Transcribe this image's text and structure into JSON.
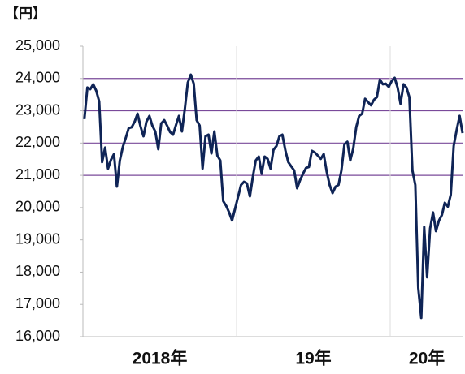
{
  "chart_data": {
    "type": "line",
    "unit": "【円】",
    "categories": [
      "2018年",
      "19年",
      "20年"
    ],
    "values": [
      [
        22740,
        23720,
        23670,
        23820,
        23620,
        23290,
        21410,
        21860,
        21210,
        21480,
        21660,
        20650,
        21460,
        21880,
        22160,
        22460,
        22490,
        22660,
        22910,
        22510,
        22210,
        22660,
        22840,
        22540,
        22360,
        21810,
        22610,
        22710,
        22540,
        22340,
        22260,
        22560,
        22840,
        22360,
        23070,
        23870,
        24120,
        23840,
        22710,
        22540,
        21210,
        22210,
        22260,
        21680,
        22360,
        21610,
        21460,
        20200,
        20050,
        19850,
        19600
      ],
      [
        20330,
        20700,
        20800,
        20750,
        20350,
        20950,
        21460,
        21580,
        21050,
        21580,
        21510,
        21210,
        21790,
        21910,
        22210,
        22260,
        21780,
        21410,
        21280,
        21150,
        20600,
        20850,
        21050,
        21230,
        21260,
        21760,
        21710,
        21610,
        21510,
        21660,
        21110,
        20700,
        20450,
        20650,
        20700,
        21150,
        21960,
        22040,
        21460,
        21840,
        22490,
        22840,
        22910,
        23370,
        23270,
        23170,
        23340,
        23420,
        23970,
        23820,
        23840,
        23740
      ],
      [
        23920,
        24020,
        23720,
        23220,
        23820,
        23720,
        23420,
        21150,
        20700,
        17510,
        16580,
        19400,
        17840,
        19350,
        19850,
        19270,
        19600,
        19770,
        20150,
        20030,
        20400,
        21910,
        22410,
        22840,
        22310
      ]
    ],
    "color": "#0f2456",
    "ylim": [
      16000,
      25000
    ],
    "yticks": [
      {
        "value": 16000,
        "label": "16,000"
      },
      {
        "value": 17000,
        "label": "17,000"
      },
      {
        "value": 18000,
        "label": "18,000"
      },
      {
        "value": 19000,
        "label": "19,000"
      },
      {
        "value": 20000,
        "label": "20,000"
      },
      {
        "value": 21000,
        "label": "21,000"
      },
      {
        "value": 22000,
        "label": "22,000"
      },
      {
        "value": 23000,
        "label": "23,000"
      },
      {
        "value": 24000,
        "label": "24,000"
      },
      {
        "value": 25000,
        "label": "25,000"
      }
    ],
    "ref_lines": [
      21000,
      22000,
      23000,
      24000
    ],
    "ref_line_color": "#7a4a9a"
  }
}
